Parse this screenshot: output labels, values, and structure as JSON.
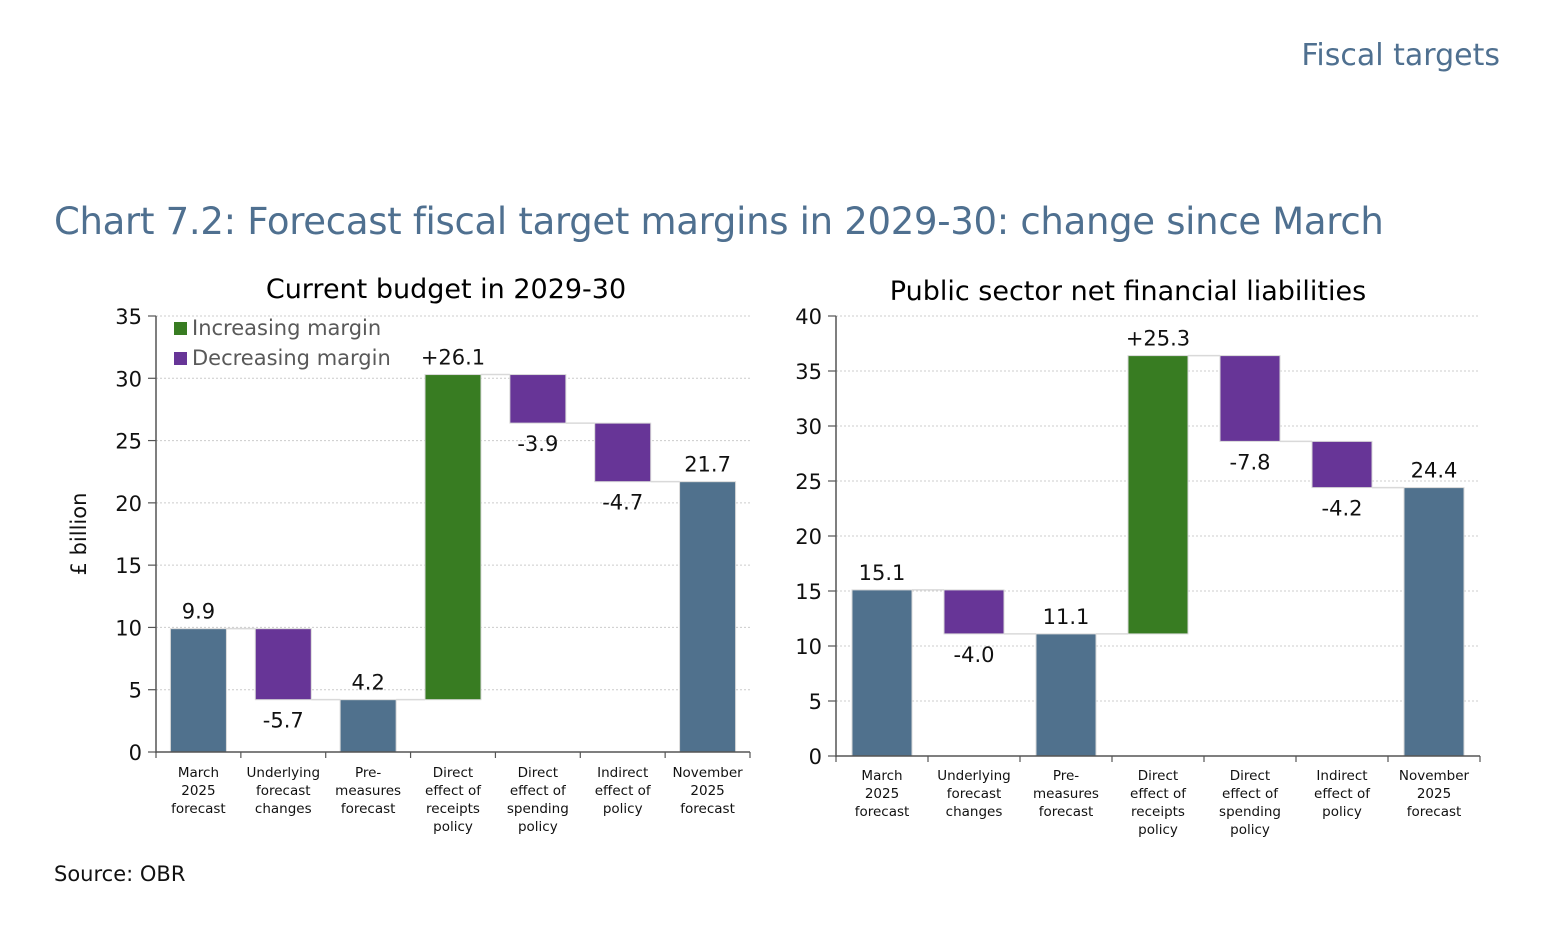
{
  "header": {
    "section_title": "Fiscal targets"
  },
  "figure": {
    "title": "Chart 7.2: Forecast fiscal target margins in 2029-30: change since March",
    "source": "Source: OBR"
  },
  "colors": {
    "total": "#50718d",
    "increase": "#387c22",
    "decrease": "#673597",
    "grid": "#cccccc",
    "axis": "#555555",
    "legend_text": "#595959"
  },
  "legend": [
    {
      "label": "Increasing margin",
      "kind": "increase"
    },
    {
      "label": "Decreasing margin",
      "kind": "decrease"
    }
  ],
  "chart_data": [
    {
      "type": "bar",
      "subtype": "waterfall",
      "title": "Current budget in 2029-30",
      "ylabel": "£ billion",
      "xlabel": "",
      "ylim": [
        0,
        35
      ],
      "yticks": [
        0,
        5,
        10,
        15,
        20,
        25,
        30,
        35
      ],
      "grid": true,
      "legend_position": "top-left",
      "categories": [
        [
          "March",
          "2025",
          "forecast"
        ],
        [
          "Underlying",
          "forecast",
          "changes"
        ],
        [
          "Pre-",
          "measures",
          "forecast"
        ],
        [
          "Direct",
          "effect of",
          "receipts",
          "policy"
        ],
        [
          "Direct",
          "effect of",
          "spending",
          "policy"
        ],
        [
          "Indirect",
          "effect of",
          "policy"
        ],
        [
          "November",
          "2025",
          "forecast"
        ]
      ],
      "bars": [
        {
          "kind": "total",
          "value": 9.9,
          "label": "9.9"
        },
        {
          "kind": "decrease",
          "value": -5.7,
          "label": "-5.7"
        },
        {
          "kind": "total",
          "value": 4.2,
          "label": "4.2"
        },
        {
          "kind": "increase",
          "value": 26.1,
          "label": "+26.1"
        },
        {
          "kind": "decrease",
          "value": -3.9,
          "label": "-3.9"
        },
        {
          "kind": "decrease",
          "value": -4.7,
          "label": "-4.7"
        },
        {
          "kind": "total",
          "value": 21.7,
          "label": "21.7"
        }
      ]
    },
    {
      "type": "bar",
      "subtype": "waterfall",
      "title": "Public sector net financial liabilities",
      "ylabel": "",
      "xlabel": "",
      "ylim": [
        0,
        40
      ],
      "yticks": [
        0,
        5,
        10,
        15,
        20,
        25,
        30,
        35,
        40
      ],
      "grid": true,
      "categories": [
        [
          "March",
          "2025",
          "forecast"
        ],
        [
          "Underlying",
          "forecast",
          "changes"
        ],
        [
          "Pre-",
          "measures",
          "forecast"
        ],
        [
          "Direct",
          "effect of",
          "receipts",
          "policy"
        ],
        [
          "Direct",
          "effect of",
          "spending",
          "policy"
        ],
        [
          "Indirect",
          "effect of",
          "policy"
        ],
        [
          "November",
          "2025",
          "forecast"
        ]
      ],
      "bars": [
        {
          "kind": "total",
          "value": 15.1,
          "label": "15.1"
        },
        {
          "kind": "decrease",
          "value": -4.0,
          "label": "-4.0"
        },
        {
          "kind": "total",
          "value": 11.1,
          "label": "11.1"
        },
        {
          "kind": "increase",
          "value": 25.3,
          "label": "+25.3"
        },
        {
          "kind": "decrease",
          "value": -7.8,
          "label": "-7.8"
        },
        {
          "kind": "decrease",
          "value": -4.2,
          "label": "-4.2"
        },
        {
          "kind": "total",
          "value": 24.4,
          "label": "24.4"
        }
      ]
    }
  ]
}
